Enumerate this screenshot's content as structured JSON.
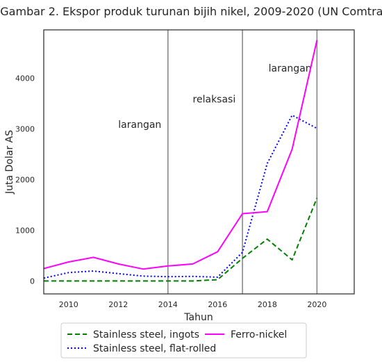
{
  "chart_data": {
    "type": "line",
    "title": "Gambar 2. Ekspor produk turunan bijih nikel, 2009-2020 (UN Comtrade)",
    "xlabel": "Tahun",
    "ylabel": "Juta Dolar AS",
    "xlim": [
      2009,
      2021.5
    ],
    "ylim": [
      -250,
      4950
    ],
    "x_ticks": [
      2010,
      2012,
      2014,
      2016,
      2018,
      2020
    ],
    "y_ticks": [
      0,
      1000,
      2000,
      3000,
      4000
    ],
    "grid": false,
    "vlines": [
      2014,
      2017,
      2020
    ],
    "annotations": [
      {
        "text": "larangan",
        "x": 2012,
        "y": 3020
      },
      {
        "text": "relaksasi",
        "x": 2015,
        "y": 3520
      },
      {
        "text": "larangan",
        "x": 2018.05,
        "y": 4130
      }
    ],
    "x": [
      2009,
      2010,
      2011,
      2012,
      2013,
      2014,
      2015,
      2016,
      2017,
      2018,
      2019,
      2020
    ],
    "series": [
      {
        "name": "Stainless steel, ingots",
        "color": "#008000",
        "dash": "dashed",
        "values": [
          5,
          5,
          5,
          5,
          5,
          5,
          5,
          30,
          450,
          830,
          420,
          1640
        ]
      },
      {
        "name": "Stainless steel, flat-rolled",
        "color": "#0000ff",
        "dash": "dotted",
        "values": [
          60,
          170,
          200,
          150,
          100,
          90,
          95,
          80,
          570,
          2320,
          3270,
          3010
        ]
      },
      {
        "name": "Ferro-nickel",
        "color": "#ff00ff",
        "dash": "solid",
        "values": [
          250,
          380,
          470,
          340,
          240,
          300,
          340,
          580,
          1330,
          1370,
          2600,
          4750
        ]
      }
    ],
    "legend": {
      "placement": "bottom",
      "columns": 2
    },
    "colors": {
      "vline": "#808080",
      "frame": "#262626"
    }
  }
}
